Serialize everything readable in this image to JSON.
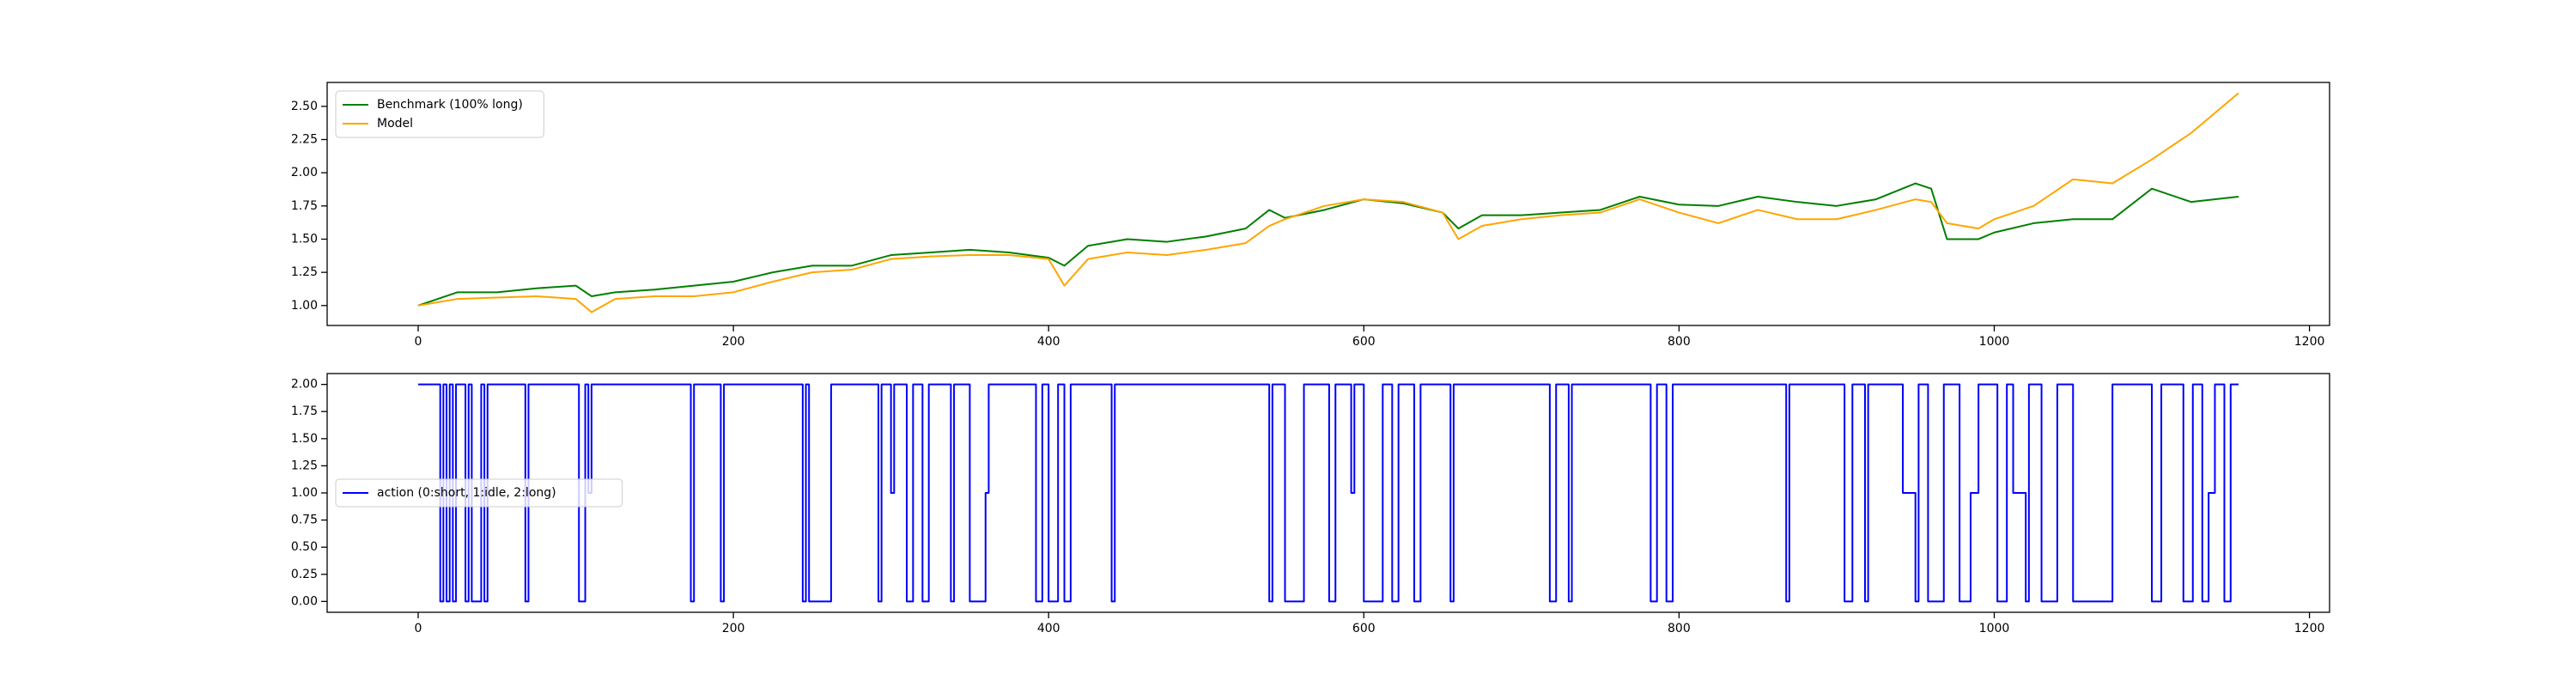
{
  "chart_data": [
    {
      "type": "line",
      "x": [
        0,
        25,
        50,
        75,
        100,
        110,
        125,
        150,
        175,
        200,
        225,
        250,
        275,
        300,
        325,
        350,
        375,
        400,
        410,
        425,
        450,
        475,
        500,
        525,
        540,
        550,
        575,
        600,
        625,
        650,
        660,
        675,
        700,
        725,
        750,
        775,
        800,
        825,
        850,
        875,
        900,
        925,
        950,
        960,
        970,
        990,
        1000,
        1025,
        1050,
        1075,
        1100,
        1125,
        1155
      ],
      "series": [
        {
          "name": "Benchmark (100% long)",
          "color": "#008000",
          "values": [
            1.0,
            1.1,
            1.1,
            1.13,
            1.15,
            1.07,
            1.1,
            1.12,
            1.15,
            1.18,
            1.25,
            1.3,
            1.3,
            1.38,
            1.4,
            1.42,
            1.4,
            1.36,
            1.3,
            1.45,
            1.5,
            1.48,
            1.52,
            1.58,
            1.72,
            1.66,
            1.72,
            1.8,
            1.77,
            1.7,
            1.58,
            1.68,
            1.68,
            1.7,
            1.72,
            1.82,
            1.76,
            1.75,
            1.82,
            1.78,
            1.75,
            1.8,
            1.92,
            1.88,
            1.5,
            1.5,
            1.55,
            1.62,
            1.65,
            1.65,
            1.88,
            1.78,
            1.82
          ]
        },
        {
          "name": "Model",
          "color": "#ffa500",
          "values": [
            1.0,
            1.05,
            1.06,
            1.07,
            1.05,
            0.95,
            1.05,
            1.07,
            1.07,
            1.1,
            1.18,
            1.25,
            1.27,
            1.35,
            1.37,
            1.38,
            1.38,
            1.35,
            1.15,
            1.35,
            1.4,
            1.38,
            1.42,
            1.47,
            1.6,
            1.65,
            1.75,
            1.8,
            1.78,
            1.7,
            1.5,
            1.6,
            1.65,
            1.68,
            1.7,
            1.8,
            1.7,
            1.62,
            1.72,
            1.65,
            1.65,
            1.72,
            1.8,
            1.78,
            1.62,
            1.58,
            1.65,
            1.75,
            1.95,
            1.92,
            2.1,
            2.3,
            2.6
          ]
        }
      ],
      "xlim": [
        -57.75,
        1212.75
      ],
      "xticks": [
        0,
        200,
        400,
        600,
        800,
        1000,
        1200
      ],
      "ylim": [
        0.85,
        2.68
      ],
      "yticks": [
        {
          "value": 1,
          "label": "1.00"
        },
        {
          "value": 1.25,
          "label": "1.25"
        },
        {
          "value": 1.5,
          "label": "1.50"
        },
        {
          "value": 1.75,
          "label": "1.75"
        },
        {
          "value": 2,
          "label": "2.00"
        },
        {
          "value": 2.25,
          "label": "2.25"
        },
        {
          "value": 2.5,
          "label": "2.50"
        }
      ],
      "grid": false,
      "legend": "upper-left"
    },
    {
      "type": "line",
      "x": [
        0,
        14,
        14,
        16,
        16,
        18,
        18,
        20,
        20,
        22,
        22,
        24,
        24,
        30,
        30,
        32,
        32,
        34,
        34,
        40,
        40,
        42,
        42,
        44,
        44,
        68,
        68,
        70,
        70,
        102,
        102,
        106,
        106,
        108,
        108,
        110,
        110,
        173,
        173,
        175,
        175,
        192,
        192,
        194,
        194,
        244,
        244,
        246,
        246,
        248,
        248,
        262,
        262,
        292,
        292,
        294,
        294,
        300,
        300,
        302,
        302,
        310,
        310,
        314,
        314,
        320,
        320,
        324,
        324,
        338,
        338,
        340,
        340,
        350,
        350,
        360,
        360,
        362,
        362,
        392,
        392,
        396,
        396,
        400,
        400,
        406,
        406,
        410,
        410,
        414,
        414,
        440,
        440,
        442,
        442,
        540,
        540,
        542,
        542,
        550,
        550,
        562,
        562,
        578,
        578,
        582,
        582,
        592,
        592,
        594,
        594,
        600,
        600,
        612,
        612,
        618,
        618,
        622,
        622,
        632,
        632,
        636,
        636,
        655,
        655,
        657,
        657,
        718,
        718,
        722,
        722,
        730,
        730,
        732,
        732,
        782,
        782,
        786,
        786,
        792,
        792,
        796,
        796,
        868,
        868,
        870,
        870,
        905,
        905,
        910,
        910,
        918,
        918,
        920,
        920,
        942,
        942,
        950,
        950,
        952,
        952,
        958,
        958,
        968,
        968,
        978,
        978,
        985,
        985,
        990,
        990,
        1002,
        1002,
        1008,
        1008,
        1012,
        1012,
        1020,
        1020,
        1022,
        1022,
        1030,
        1030,
        1040,
        1040,
        1050,
        1050,
        1075,
        1075,
        1100,
        1100,
        1106,
        1106,
        1120,
        1120,
        1126,
        1126,
        1132,
        1132,
        1136,
        1136,
        1140,
        1140,
        1146,
        1146,
        1150,
        1150,
        1155
      ],
      "series": [
        {
          "name": "action (0:short, 1:idle, 2:long)",
          "color": "#0000ff",
          "values": [
            2,
            2,
            0,
            0,
            2,
            2,
            0,
            0,
            2,
            2,
            0,
            0,
            2,
            2,
            0,
            0,
            2,
            2,
            0,
            0,
            2,
            2,
            0,
            0,
            2,
            2,
            0,
            0,
            2,
            2,
            0,
            0,
            2,
            2,
            1,
            1,
            2,
            2,
            0,
            0,
            2,
            2,
            0,
            0,
            2,
            2,
            0,
            0,
            2,
            2,
            0,
            0,
            2,
            2,
            0,
            0,
            2,
            2,
            1,
            1,
            2,
            2,
            0,
            0,
            2,
            2,
            0,
            0,
            2,
            2,
            0,
            0,
            2,
            2,
            0,
            0,
            1,
            1,
            2,
            2,
            0,
            0,
            2,
            2,
            0,
            0,
            2,
            2,
            0,
            0,
            2,
            2,
            0,
            0,
            2,
            2,
            0,
            0,
            2,
            2,
            0,
            0,
            2,
            2,
            0,
            0,
            2,
            2,
            1,
            1,
            2,
            2,
            0,
            0,
            2,
            2,
            0,
            0,
            2,
            2,
            0,
            0,
            2,
            2,
            0,
            0,
            2,
            2,
            0,
            0,
            2,
            2,
            0,
            0,
            2,
            2,
            0,
            0,
            2,
            2,
            0,
            0,
            2,
            2,
            0,
            0,
            2,
            2,
            0,
            0,
            2,
            2,
            0,
            0,
            2,
            2,
            1,
            1,
            0,
            0,
            2,
            2,
            0,
            0,
            2,
            2,
            0,
            0,
            1,
            1,
            2,
            2,
            0,
            0,
            2,
            2,
            1,
            1,
            0,
            0,
            2,
            2,
            0,
            0,
            2,
            2,
            0,
            0,
            2,
            2,
            0,
            0,
            2,
            2,
            0,
            0,
            2,
            2,
            0,
            0,
            1,
            1,
            2,
            2,
            0,
            0,
            2,
            2
          ]
        }
      ],
      "xlim": [
        -57.75,
        1212.75
      ],
      "xticks": [
        0,
        200,
        400,
        600,
        800,
        1000,
        1200
      ],
      "ylim": [
        -0.1,
        2.1
      ],
      "yticks": [
        {
          "value": 0,
          "label": "0.00"
        },
        {
          "value": 0.25,
          "label": "0.25"
        },
        {
          "value": 0.5,
          "label": "0.50"
        },
        {
          "value": 0.75,
          "label": "0.75"
        },
        {
          "value": 1,
          "label": "1.00"
        },
        {
          "value": 1.25,
          "label": "1.25"
        },
        {
          "value": 1.5,
          "label": "1.50"
        },
        {
          "value": 1.75,
          "label": "1.75"
        },
        {
          "value": 2,
          "label": "2.00"
        }
      ],
      "grid": false,
      "legend": "center-left"
    }
  ]
}
